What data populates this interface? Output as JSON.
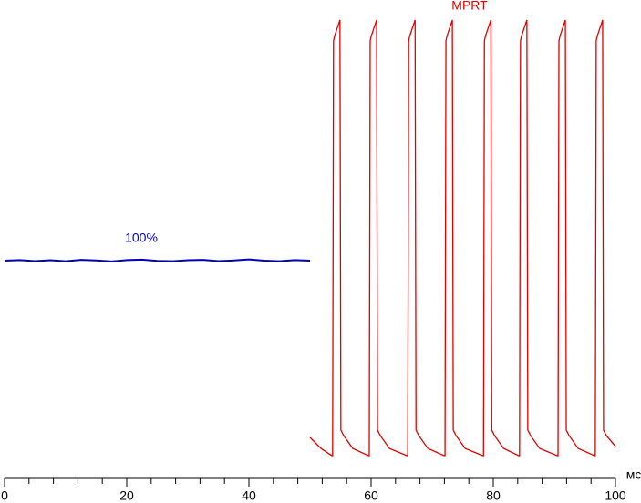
{
  "chart_data": {
    "type": "line",
    "annotations": [
      "100%",
      "MPRT"
    ],
    "x_unit": "мс",
    "xlim": [
      0,
      100
    ],
    "ylim": [
      0,
      225
    ],
    "xticks": [
      0,
      20,
      40,
      60,
      80,
      100
    ],
    "xminorticks": [
      4,
      8,
      12,
      16,
      24,
      28,
      32,
      36,
      44,
      48,
      52,
      56,
      64,
      68,
      72,
      76,
      84,
      88,
      92,
      96
    ],
    "grid": false,
    "series": [
      {
        "name": "100%",
        "color": "#0000b4",
        "x": [
          0,
          2.5,
          5,
          7.5,
          10,
          12.5,
          15,
          17.5,
          20,
          22.5,
          25,
          27.5,
          30,
          32.5,
          35,
          37.5,
          40,
          42.5,
          45,
          47.5,
          50
        ],
        "values": [
          100,
          100.3,
          99.8,
          100.2,
          99.7,
          100.4,
          100.1,
          99.6,
          100.3,
          100.5,
          99.9,
          99.7,
          100.2,
          100.4,
          99.8,
          100.1,
          100.6,
          100,
          99.7,
          100.3,
          100
        ]
      },
      {
        "name": "MPRT",
        "color": "#e00000",
        "x": [
          50.0,
          51.8,
          53.55,
          53.7,
          53.85,
          54.0,
          54.9,
          55.05,
          55.5,
          57.0,
          59.55,
          59.7,
          59.85,
          60.0,
          60.9,
          61.05,
          61.5,
          63.0,
          65.85,
          66.0,
          66.15,
          66.3,
          67.2,
          67.35,
          67.8,
          69.3,
          71.95,
          72.1,
          72.25,
          72.4,
          73.3,
          73.45,
          73.9,
          75.4,
          78.25,
          78.4,
          78.55,
          78.7,
          79.6,
          79.75,
          80.2,
          81.7,
          84.15,
          84.3,
          84.45,
          84.6,
          85.5,
          85.65,
          86.1,
          87.6,
          90.45,
          90.6,
          90.75,
          90.9,
          91.8,
          91.95,
          92.4,
          93.9,
          96.55,
          96.7,
          96.85,
          97.0,
          97.9,
          98.05,
          98.5,
          100.0
        ],
        "values": [
          13.4,
          8.0,
          4.5,
          4.5,
          207.6,
          209.8,
          217.9,
          17.0,
          14.3,
          8.0,
          4.5,
          4.5,
          207.6,
          209.8,
          217.9,
          17.0,
          14.3,
          8.0,
          4.5,
          4.5,
          207.6,
          209.8,
          217.9,
          17.0,
          14.3,
          8.0,
          4.5,
          4.5,
          207.6,
          209.8,
          217.9,
          17.0,
          14.3,
          8.0,
          4.5,
          4.5,
          207.6,
          209.8,
          217.9,
          17.0,
          14.3,
          8.0,
          4.5,
          4.5,
          207.6,
          209.8,
          217.9,
          17.0,
          14.3,
          8.0,
          4.5,
          4.5,
          207.6,
          209.8,
          217.9,
          17.0,
          14.3,
          8.0,
          4.5,
          4.5,
          207.6,
          209.8,
          217.9,
          17.0,
          14.3,
          9.0
        ]
      }
    ]
  }
}
